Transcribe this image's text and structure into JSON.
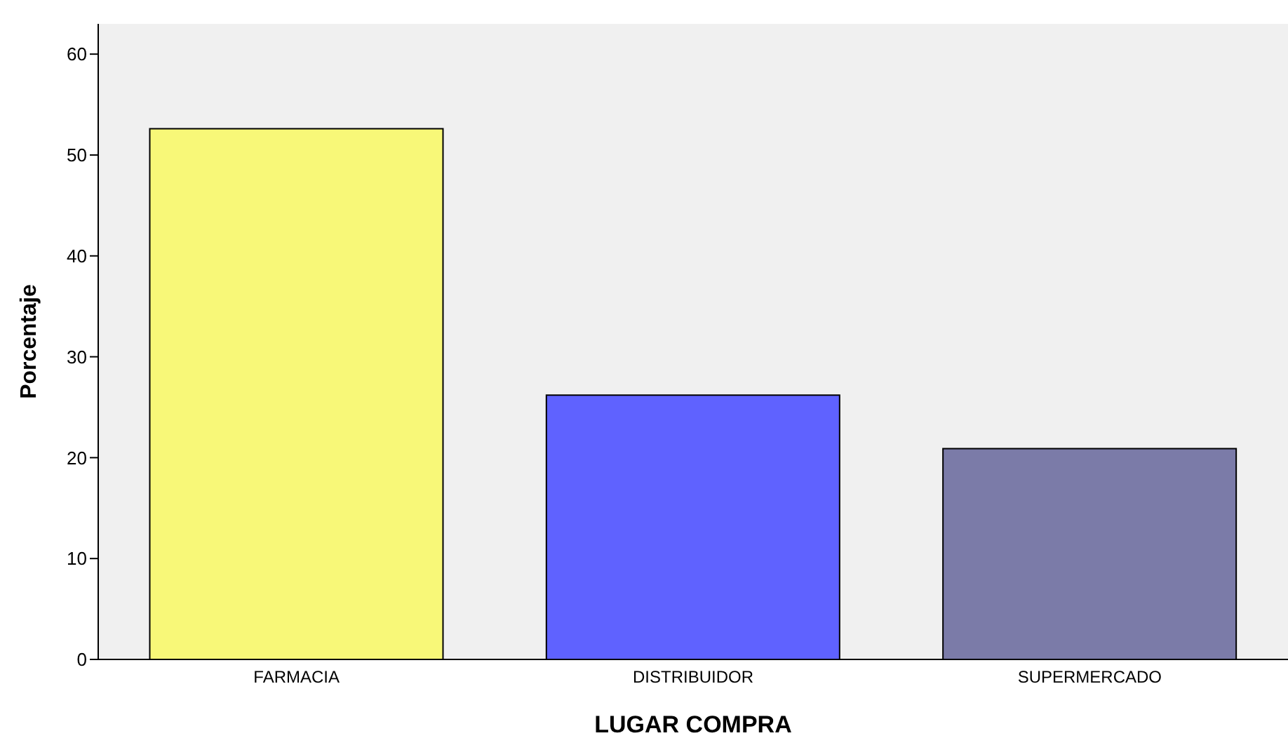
{
  "chart_data": {
    "type": "bar",
    "xlabel": "LUGAR COMPRA",
    "ylabel": "Porcentaje",
    "categories": [
      "FARMACIA",
      "DISTRIBUIDOR",
      "SUPERMERCADO"
    ],
    "values": [
      52.6,
      26.2,
      20.9
    ],
    "colors": [
      "#f8f878",
      "#5f62ff",
      "#7b7ba8"
    ],
    "ylim": [
      0,
      63
    ],
    "yticks": [
      0,
      10,
      20,
      30,
      40,
      50,
      60
    ],
    "grid": false
  }
}
